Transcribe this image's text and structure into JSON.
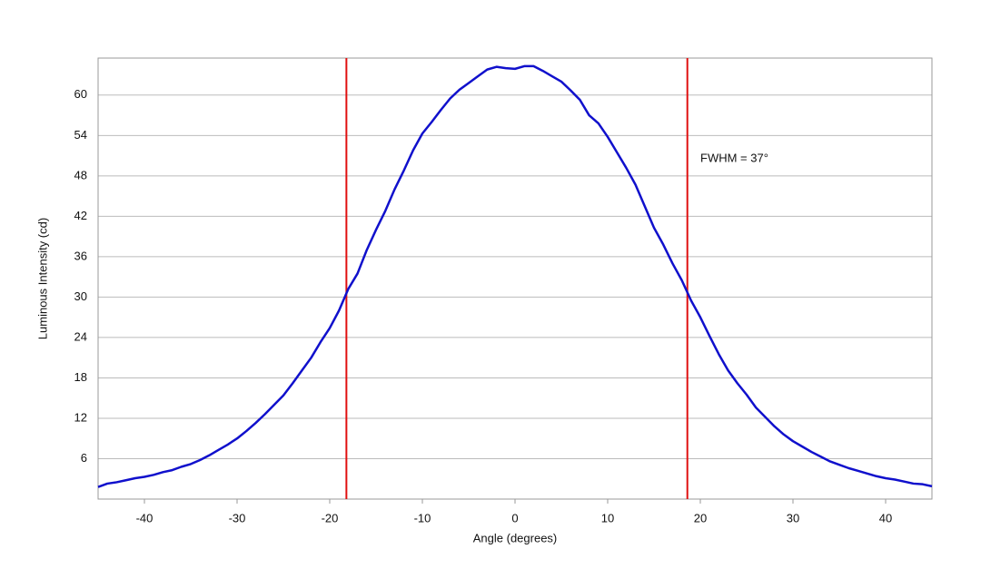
{
  "chart_data": {
    "type": "line",
    "x_label": "Angle (degrees)",
    "y_label": "Luminous Intensity (cd)",
    "xlim": [
      -45,
      45
    ],
    "ylim": [
      0,
      65.5
    ],
    "xticks": [
      -40,
      -30,
      -20,
      -10,
      0,
      10,
      20,
      30,
      40
    ],
    "yticks": [
      6,
      12,
      18,
      24,
      30,
      36,
      42,
      48,
      54,
      60
    ],
    "grid": true,
    "x": [
      -45,
      -44,
      -43,
      -42,
      -41,
      -40,
      -39,
      -38,
      -37,
      -36,
      -35,
      -34,
      -33,
      -32,
      -31,
      -30,
      -29,
      -28,
      -27,
      -26,
      -25,
      -24,
      -23,
      -22,
      -21,
      -20,
      -19,
      -18,
      -17,
      -16,
      -15,
      -14,
      -13,
      -12,
      -11,
      -10,
      -9,
      -8,
      -7,
      -6,
      -5,
      -4,
      -3,
      -2,
      -1,
      0,
      1,
      2,
      3,
      4,
      5,
      6,
      7,
      8,
      9,
      10,
      11,
      12,
      13,
      14,
      15,
      16,
      17,
      18,
      19,
      20,
      21,
      22,
      23,
      24,
      25,
      26,
      27,
      28,
      29,
      30,
      31,
      32,
      33,
      34,
      35,
      36,
      37,
      38,
      39,
      40,
      41,
      42,
      43,
      44,
      45
    ],
    "series": [
      {
        "color": "#1010cc",
        "values": [
          1.8,
          2.3,
          2.5,
          2.8,
          3.1,
          3.3,
          3.6,
          4.0,
          4.3,
          4.8,
          5.2,
          5.8,
          6.5,
          7.3,
          8.1,
          9.0,
          10.1,
          11.3,
          12.6,
          14.0,
          15.4,
          17.2,
          19.1,
          21.0,
          23.3,
          25.4,
          28.0,
          31.2,
          33.5,
          37.0,
          40.0,
          42.8,
          46.0,
          48.8,
          51.8,
          54.3,
          56.0,
          57.8,
          59.5,
          60.8,
          61.8,
          62.8,
          63.8,
          64.2,
          64.0,
          63.9,
          64.3,
          64.3,
          63.6,
          62.8,
          62.0,
          60.7,
          59.3,
          57.0,
          55.8,
          53.8,
          51.5,
          49.2,
          46.7,
          43.5,
          40.3,
          37.8,
          35.0,
          32.5,
          29.5,
          27.0,
          24.2,
          21.5,
          19.1,
          17.2,
          15.5,
          13.6,
          12.2,
          10.8,
          9.6,
          8.6,
          7.8,
          7.0,
          6.3,
          5.6,
          5.1,
          4.6,
          4.2,
          3.8,
          3.4,
          3.1,
          2.9,
          2.6,
          2.3,
          2.2,
          1.9
        ]
      }
    ],
    "vlines": [
      {
        "value": -18.2,
        "color": "#e01010"
      },
      {
        "value": 18.6,
        "color": "#e01010"
      }
    ],
    "annotation": {
      "text": "FWHM = 37°",
      "x": 20,
      "y": 50.5
    }
  }
}
